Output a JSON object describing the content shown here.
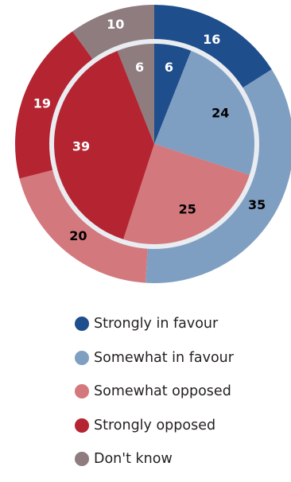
{
  "chart_data": {
    "type": "pie",
    "subtype": "nested-donut",
    "categories": [
      "Strongly in favour",
      "Somewhat in favour",
      "Somewhat opposed",
      "Strongly opposed",
      "Don't know"
    ],
    "colors": [
      "#1f4e8c",
      "#7f9fc2",
      "#d3787d",
      "#b52531",
      "#8e7c7f"
    ],
    "label_colors": [
      "#ffffff",
      "#000000",
      "#000000",
      "#ffffff",
      "#ffffff"
    ],
    "series": [
      {
        "ring": "outer",
        "values": [
          16,
          35,
          20,
          19,
          10
        ]
      },
      {
        "ring": "inner",
        "values": [
          6,
          24,
          25,
          39,
          6
        ]
      }
    ],
    "legend_position": "bottom"
  }
}
